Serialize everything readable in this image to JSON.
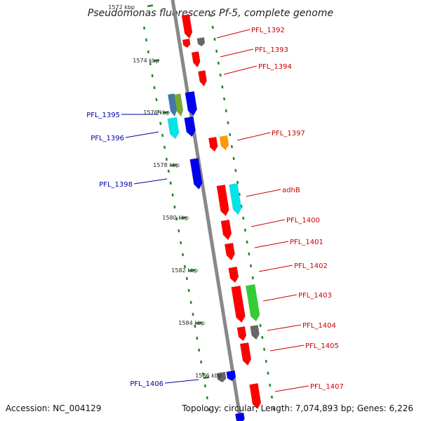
{
  "title": "Pseudomonas fluorescens Pf-5, complete genome",
  "footer": {
    "accession": "Accession: NC_004129",
    "summary": "Topology: circular; Length: 7,074,893 bp; Genes: 6,226"
  },
  "ticks": [
    "1572 kbp",
    "1574 kbp",
    "1576 kbp",
    "1578 kbp",
    "1580 kbp",
    "1582 kbp",
    "1584 kbp",
    "1586 kbp"
  ],
  "genes_right": [
    "PFL_1392",
    "PFL_1393",
    "PFL_1394",
    "PFL_1397",
    "adhB",
    "PFL_1400",
    "PFL_1401",
    "PFL_1402",
    "PFL_1403",
    "PFL_1404",
    "PFL_1405",
    "PFL_1407"
  ],
  "genes_left": [
    "PFL_1395",
    "PFL_1396",
    "PFL_1398",
    "PFL_1406"
  ],
  "colors": {
    "red": "#ff0000",
    "blue": "#0000ee",
    "cyan": "#00e5e5",
    "green": "#33cc33",
    "olive": "#77aa33",
    "steel": "#4477aa",
    "gray": "#666666",
    "orange": "#ff9900",
    "dot": "#228822",
    "backbone": "#888888"
  }
}
